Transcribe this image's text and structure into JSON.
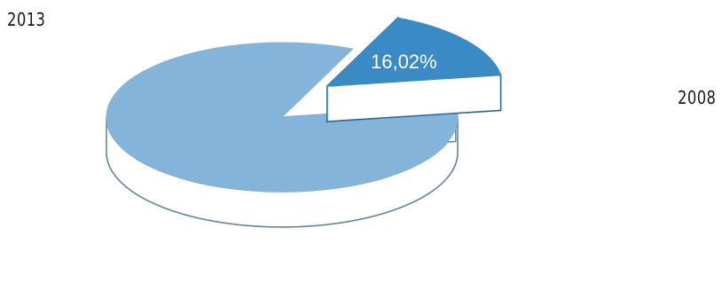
{
  "labels": {
    "top_left": "2013",
    "right": "2008"
  },
  "chart_data": {
    "type": "pie",
    "style": "3d-exploded",
    "slices": [
      {
        "value": 83.98,
        "color": "#84b4da"
      },
      {
        "value": 16.02,
        "label": "16,02%",
        "color": "#3a8ac6",
        "exploded": true
      }
    ]
  }
}
